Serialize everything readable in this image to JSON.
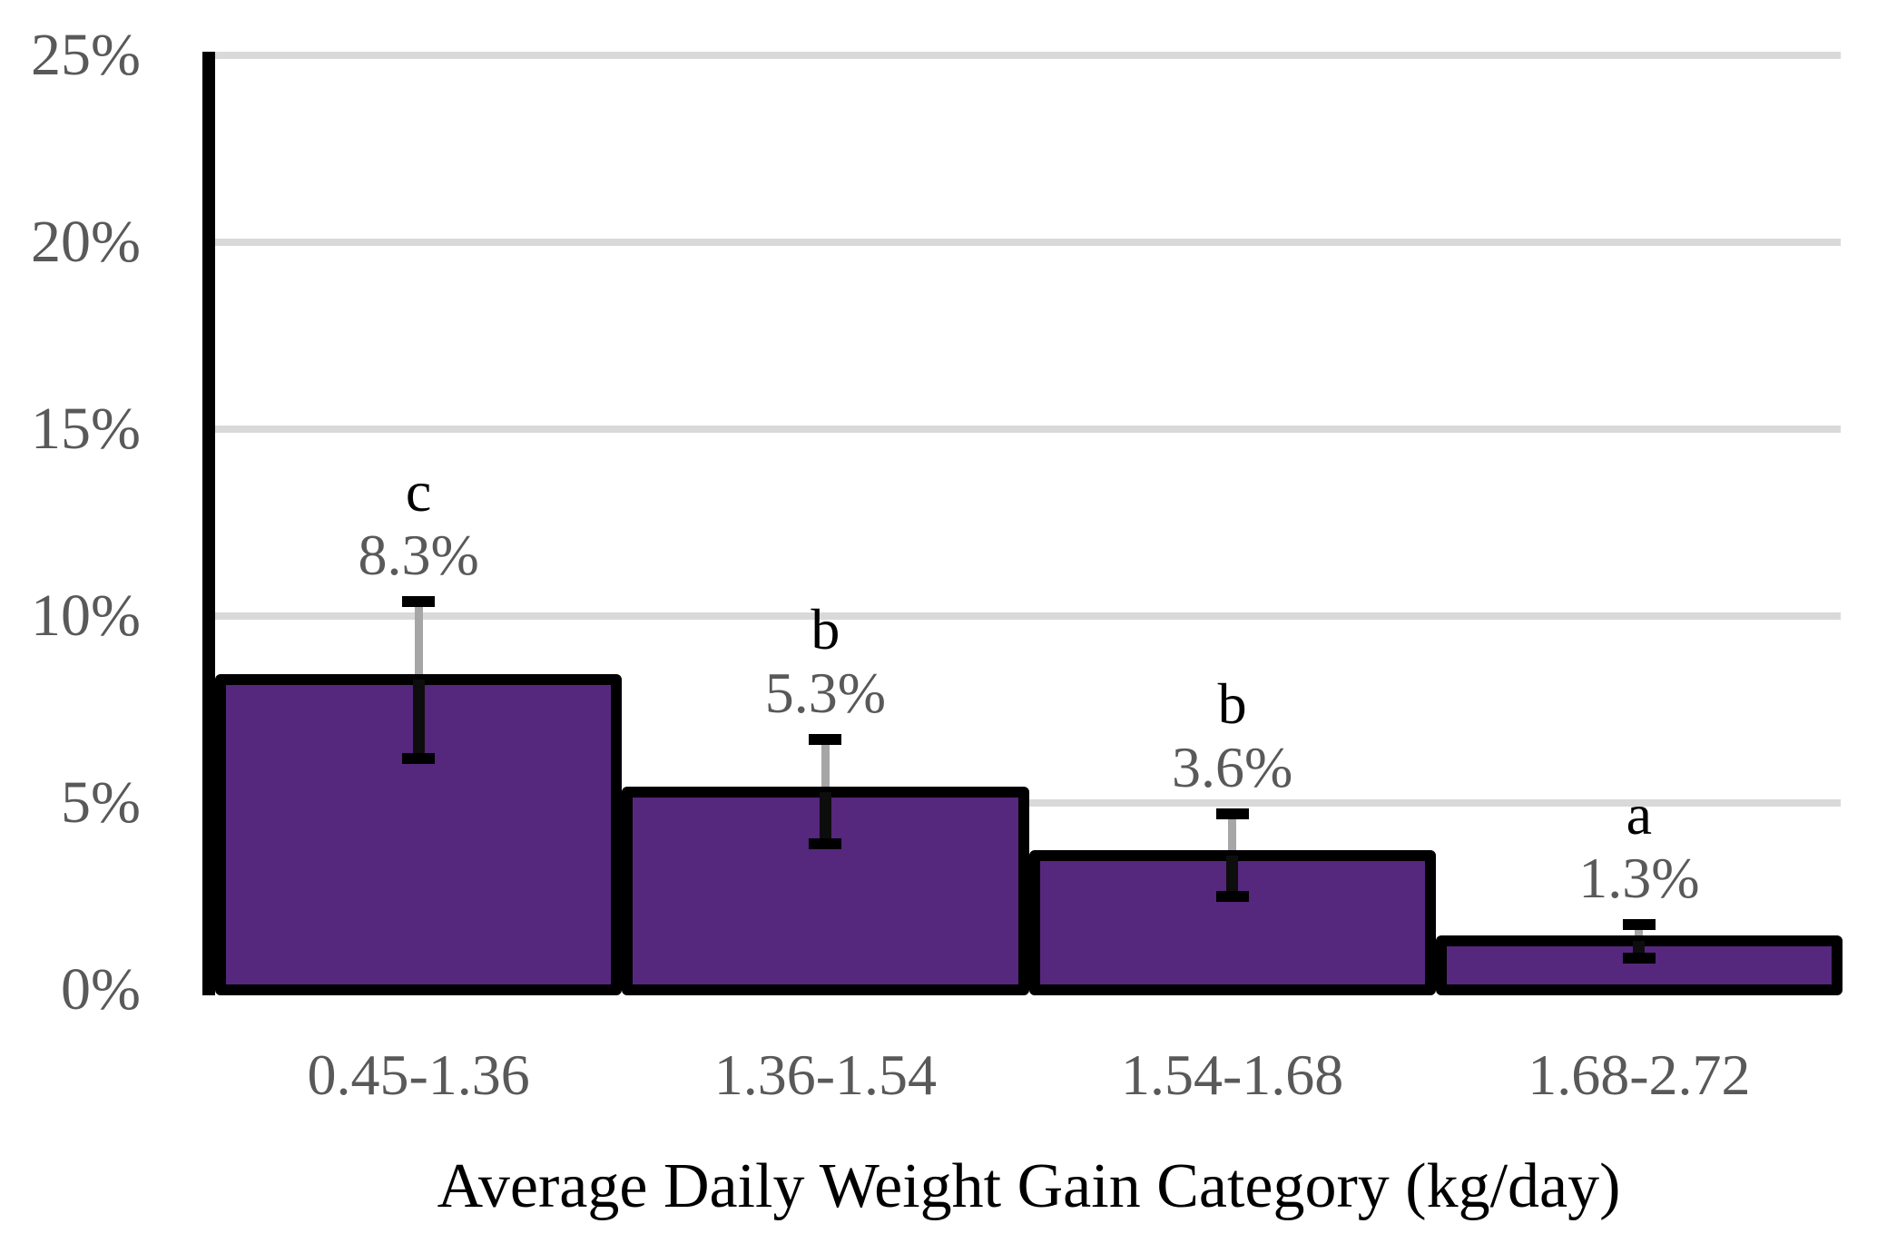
{
  "chart_data": {
    "type": "bar",
    "title": "",
    "categories": [
      "0.45-1.36",
      "1.36-1.54",
      "1.54-1.68",
      "1.68-2.72"
    ],
    "values": [
      8.3,
      5.3,
      3.6,
      1.3
    ],
    "errors_plus_minus": [
      2.1,
      1.4,
      1.1,
      0.45
    ],
    "value_labels": [
      "8.3%",
      "5.3%",
      "3.6%",
      "1.3%"
    ],
    "significance_letters": [
      "c",
      "b",
      "b",
      "a"
    ],
    "xlabel": "Average Daily Weight Gain Category (kg/day)",
    "ylabel": "",
    "ylim": [
      0,
      25
    ],
    "yticks": [
      0,
      5,
      10,
      15,
      20,
      25
    ],
    "ytick_labels": [
      "0%",
      "5%",
      "10%",
      "15%",
      "20%",
      "25%"
    ],
    "grid": "horizontal",
    "legend": "none",
    "colors": {
      "background": "#FFFFFF",
      "bar_fill": "#55277D",
      "bar_border": "#000000",
      "gridline": "#D9D9D9",
      "axis_line": "#000000",
      "tick_label_text": "#595959",
      "value_label_text": "#595959",
      "significance_letter_text": "#000000",
      "error_bar_upper_line": "#A6A6A6",
      "error_bar_lower_line": "#0D0D0D",
      "error_bar_cap": "#000000"
    }
  }
}
